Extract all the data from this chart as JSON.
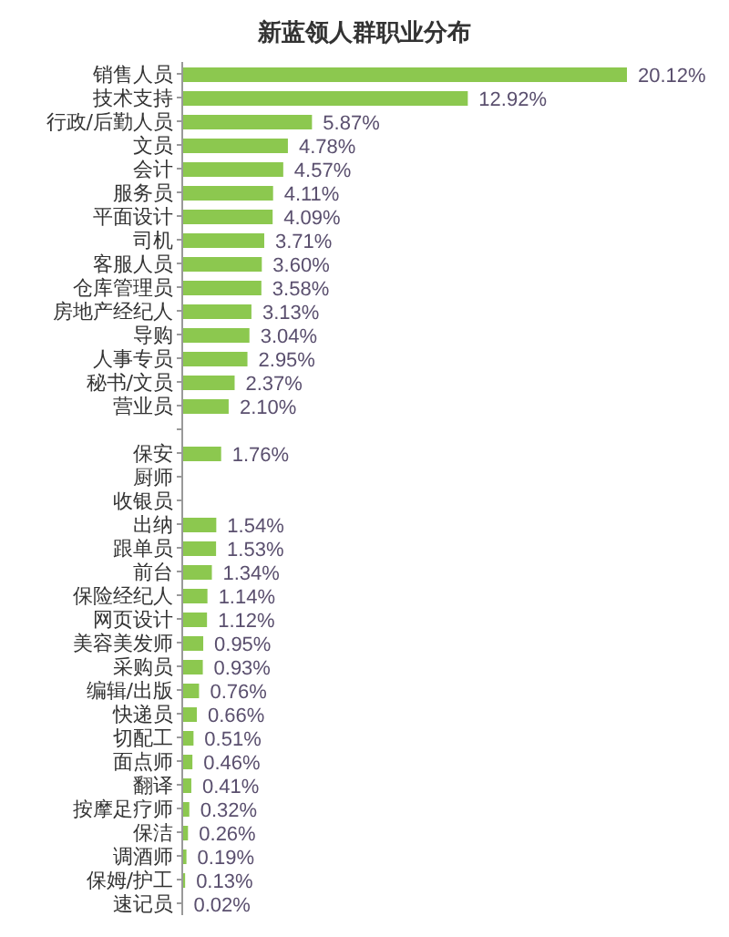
{
  "chart_data": {
    "type": "bar",
    "orientation": "horizontal",
    "title": "新蓝领人群职业分布",
    "categories": [
      "销售人员",
      "技术支持",
      "行政/后勤人员",
      "文员",
      "会计",
      "服务员",
      "平面设计",
      "司机",
      "客服人员",
      "仓库管理员",
      "房地产经纪人",
      "导购",
      "人事专员",
      "秘书/文员",
      "营业员",
      null,
      "保安",
      "厨师",
      "收银员",
      "出纳",
      "跟单员",
      "前台",
      "保险经纪人",
      "网页设计",
      "美容美发师",
      "采购员",
      "编辑/出版",
      "快递员",
      "切配工",
      "面点师",
      "翻译",
      "按摩足疗师",
      "保洁",
      "调酒师",
      "保姆/护工",
      "速记员"
    ],
    "values": [
      20.12,
      12.92,
      5.87,
      4.78,
      4.57,
      4.11,
      4.09,
      3.71,
      3.6,
      3.58,
      3.13,
      3.04,
      2.95,
      2.37,
      2.1,
      null,
      1.76,
      null,
      null,
      1.54,
      1.53,
      1.34,
      1.14,
      1.12,
      0.95,
      0.93,
      0.76,
      0.66,
      0.51,
      0.46,
      0.41,
      0.32,
      0.26,
      0.19,
      0.13,
      0.02
    ],
    "value_labels": [
      "20.12%",
      "12.92%",
      "5.87%",
      "4.78%",
      "4.57%",
      "4.11%",
      "4.09%",
      "3.71%",
      "3.60%",
      "3.58%",
      "3.13%",
      "3.04%",
      "2.95%",
      "2.37%",
      "2.10%",
      null,
      "1.76%",
      null,
      null,
      "1.54%",
      "1.53%",
      "1.34%",
      "1.14%",
      "1.12%",
      "0.95%",
      "0.93%",
      "0.76%",
      "0.66%",
      "0.51%",
      "0.46%",
      "0.41%",
      "0.32%",
      "0.26%",
      "0.19%",
      "0.13%",
      "0.02%"
    ],
    "color": "#8cc84f",
    "grid": false,
    "legend": false
  }
}
